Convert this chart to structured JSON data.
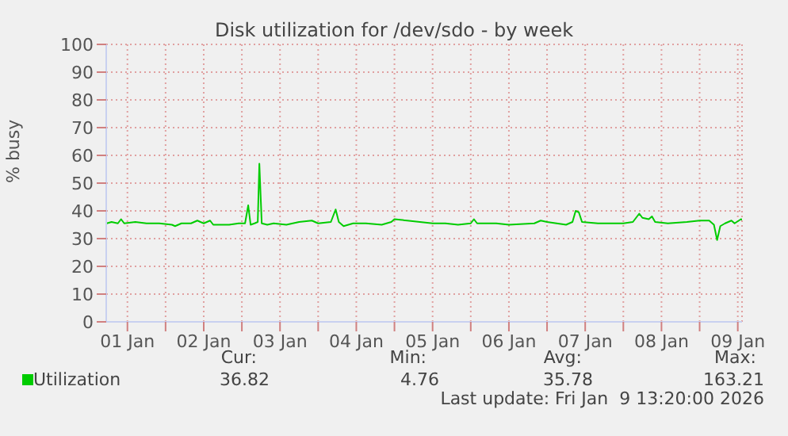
{
  "chart_data": {
    "type": "line",
    "title": "Disk utilization for /dev/sdo - by week",
    "ylabel": "% busy",
    "x": [
      "2026-01-01T05:30",
      "2026-01-01T07:00",
      "2026-01-01T09:00",
      "2026-01-01T10:00",
      "2026-01-01T11:00",
      "2026-01-01T14:30",
      "2026-01-01T18:00",
      "2026-01-01T22:00",
      "2026-01-02T02:00",
      "2026-01-02T03:00",
      "2026-01-02T05:00",
      "2026-01-02T08:00",
      "2026-01-02T10:00",
      "2026-01-02T12:00",
      "2026-01-02T14:00",
      "2026-01-02T15:00",
      "2026-01-02T17:30",
      "2026-01-02T20:00",
      "2026-01-02T23:00",
      "2026-01-03T01:00",
      "2026-01-03T02:00",
      "2026-01-03T02:45",
      "2026-01-03T04:00",
      "2026-01-03T05:00",
      "2026-01-03T05:30",
      "2026-01-03T06:15",
      "2026-01-03T08:00",
      "2026-01-03T10:00",
      "2026-01-03T14:00",
      "2026-01-03T18:00",
      "2026-01-03T22:00",
      "2026-01-04T00:00",
      "2026-01-04T04:00",
      "2026-01-04T05:30",
      "2026-01-04T06:30",
      "2026-01-04T08:00",
      "2026-01-04T11:00",
      "2026-01-04T15:00",
      "2026-01-04T20:00",
      "2026-01-04T23:00",
      "2026-01-05T00:00",
      "2026-01-05T04:00",
      "2026-01-05T08:00",
      "2026-01-05T12:00",
      "2026-01-05T16:00",
      "2026-01-05T20:00",
      "2026-01-06T00:00",
      "2026-01-06T01:00",
      "2026-01-06T02:00",
      "2026-01-06T08:00",
      "2026-01-06T12:00",
      "2026-01-06T20:00",
      "2026-01-06T22:00",
      "2026-01-07T00:00",
      "2026-01-07T06:00",
      "2026-01-07T08:00",
      "2026-01-07T09:00",
      "2026-01-07T10:00",
      "2026-01-07T11:00",
      "2026-01-07T16:00",
      "2026-01-07T20:00",
      "2026-01-08T00:00",
      "2026-01-08T03:00",
      "2026-01-08T05:00",
      "2026-01-08T06:00",
      "2026-01-08T08:00",
      "2026-01-08T09:00",
      "2026-01-08T10:00",
      "2026-01-08T14:00",
      "2026-01-08T20:00",
      "2026-01-09T00:00",
      "2026-01-09T03:00",
      "2026-01-09T04:30",
      "2026-01-09T05:30",
      "2026-01-09T06:30",
      "2026-01-09T08:00",
      "2026-01-09T10:00",
      "2026-01-09T11:00",
      "2026-01-09T13:00",
      "2026-01-09T13:20"
    ],
    "series": [
      {
        "name": "Utilization",
        "color": "#00cc00",
        "values": [
          35.5,
          36,
          35.5,
          37,
          35.5,
          36,
          35.5,
          35.5,
          35,
          34.5,
          35.5,
          35.5,
          36.5,
          35.5,
          36.5,
          35,
          35,
          35,
          35.5,
          35.5,
          42,
          35,
          35.5,
          36,
          57,
          35.5,
          35,
          35.5,
          35,
          36,
          36.5,
          35.5,
          36,
          40.5,
          36,
          34.5,
          35.5,
          35.5,
          35,
          36,
          37,
          36.5,
          36,
          35.5,
          35.5,
          35,
          35.5,
          37,
          35.5,
          35.5,
          35,
          35.5,
          36.5,
          36,
          35,
          36,
          40,
          39.5,
          36,
          35.5,
          35.5,
          35.5,
          36,
          39,
          37.5,
          37,
          38,
          36,
          35.5,
          36,
          36.5,
          36.5,
          35,
          29.5,
          34.5,
          35.5,
          36.5,
          35.5,
          37,
          36.8
        ]
      }
    ],
    "xlim": [
      "2026-01-01T05:20",
      "2026-01-09T13:20"
    ],
    "xticks": [
      {
        "value": "2026-01-01T12:00",
        "label": "01 Jan"
      },
      {
        "value": "2026-01-02T00:00",
        "label": null
      },
      {
        "value": "2026-01-02T12:00",
        "label": "02 Jan"
      },
      {
        "value": "2026-01-03T00:00",
        "label": null
      },
      {
        "value": "2026-01-03T12:00",
        "label": "03 Jan"
      },
      {
        "value": "2026-01-04T00:00",
        "label": null
      },
      {
        "value": "2026-01-04T12:00",
        "label": "04 Jan"
      },
      {
        "value": "2026-01-05T00:00",
        "label": null
      },
      {
        "value": "2026-01-05T12:00",
        "label": "05 Jan"
      },
      {
        "value": "2026-01-06T00:00",
        "label": null
      },
      {
        "value": "2026-01-06T12:00",
        "label": "06 Jan"
      },
      {
        "value": "2026-01-07T00:00",
        "label": null
      },
      {
        "value": "2026-01-07T12:00",
        "label": "07 Jan"
      },
      {
        "value": "2026-01-08T00:00",
        "label": null
      },
      {
        "value": "2026-01-08T12:00",
        "label": "08 Jan"
      },
      {
        "value": "2026-01-09T00:00",
        "label": null
      },
      {
        "value": "2026-01-09T12:00",
        "label": "09 Jan"
      }
    ],
    "ylim": [
      0,
      100
    ],
    "yticks": [
      0,
      10,
      20,
      30,
      40,
      50,
      60,
      70,
      80,
      90,
      100
    ],
    "grid": true,
    "legend": "bottom left",
    "marker": "none",
    "line_style": "solid",
    "annotations": [
      "Cur:",
      "Min:",
      "Avg:",
      "Max:",
      "36.82",
      "4.76",
      "35.78",
      "163.21",
      "Last update: Fri Jan  9 13:20:00 2026"
    ]
  }
}
